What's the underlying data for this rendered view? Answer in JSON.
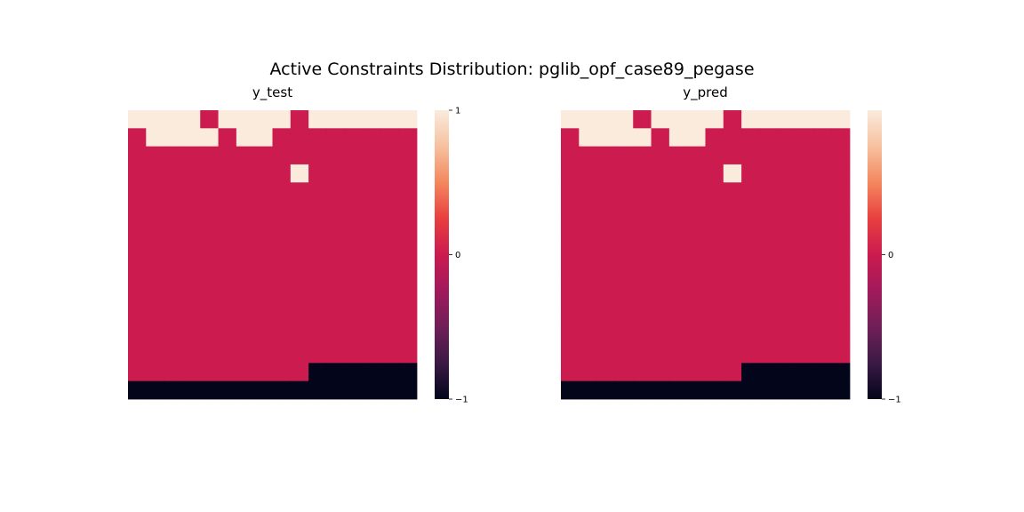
{
  "figure": {
    "title": "Active Constraints Distribution: pglib_opf_case89_pegase"
  },
  "colormap": {
    "name": "rocket",
    "stops": [
      {
        "v": -1.0,
        "color": "#03051a"
      },
      {
        "v": -0.75,
        "color": "#3a1a45"
      },
      {
        "v": -0.5,
        "color": "#701f57"
      },
      {
        "v": -0.25,
        "color": "#a11a5b"
      },
      {
        "v": 0.0,
        "color": "#cb1b4f"
      },
      {
        "v": 0.25,
        "color": "#e83f3f"
      },
      {
        "v": 0.5,
        "color": "#f4875e"
      },
      {
        "v": 0.75,
        "color": "#f6c19f"
      },
      {
        "v": 1.0,
        "color": "#faebdd"
      }
    ]
  },
  "chart_data": [
    {
      "type": "heatmap",
      "title": "y_test",
      "vmin": -1,
      "vmax": 1,
      "colorbar_ticks": [
        {
          "value": 1,
          "label": "1"
        },
        {
          "value": 0,
          "label": "0"
        },
        {
          "value": -1,
          "label": "−1"
        }
      ],
      "grid": [
        [
          1,
          1,
          1,
          1,
          0,
          1,
          1,
          1,
          1,
          0,
          1,
          1,
          1,
          1,
          1,
          1
        ],
        [
          0,
          1,
          1,
          1,
          1,
          0,
          1,
          1,
          0,
          0,
          0,
          0,
          0,
          0,
          0,
          0
        ],
        [
          0,
          0,
          0,
          0,
          0,
          0,
          0,
          0,
          0,
          0,
          0,
          0,
          0,
          0,
          0,
          0
        ],
        [
          0,
          0,
          0,
          0,
          0,
          0,
          0,
          0,
          0,
          1,
          0,
          0,
          0,
          0,
          0,
          0
        ],
        [
          0,
          0,
          0,
          0,
          0,
          0,
          0,
          0,
          0,
          0,
          0,
          0,
          0,
          0,
          0,
          0
        ],
        [
          0,
          0,
          0,
          0,
          0,
          0,
          0,
          0,
          0,
          0,
          0,
          0,
          0,
          0,
          0,
          0
        ],
        [
          0,
          0,
          0,
          0,
          0,
          0,
          0,
          0,
          0,
          0,
          0,
          0,
          0,
          0,
          0,
          0
        ],
        [
          0,
          0,
          0,
          0,
          0,
          0,
          0,
          0,
          0,
          0,
          0,
          0,
          0,
          0,
          0,
          0
        ],
        [
          0,
          0,
          0,
          0,
          0,
          0,
          0,
          0,
          0,
          0,
          0,
          0,
          0,
          0,
          0,
          0
        ],
        [
          0,
          0,
          0,
          0,
          0,
          0,
          0,
          0,
          0,
          0,
          0,
          0,
          0,
          0,
          0,
          0
        ],
        [
          0,
          0,
          0,
          0,
          0,
          0,
          0,
          0,
          0,
          0,
          0,
          0,
          0,
          0,
          0,
          0
        ],
        [
          0,
          0,
          0,
          0,
          0,
          0,
          0,
          0,
          0,
          0,
          0,
          0,
          0,
          0,
          0,
          0
        ],
        [
          0,
          0,
          0,
          0,
          0,
          0,
          0,
          0,
          0,
          0,
          0,
          0,
          0,
          0,
          0,
          0
        ],
        [
          0,
          0,
          0,
          0,
          0,
          0,
          0,
          0,
          0,
          0,
          0,
          0,
          0,
          0,
          0,
          0
        ],
        [
          0,
          0,
          0,
          0,
          0,
          0,
          0,
          0,
          0,
          0,
          -1,
          -1,
          -1,
          -1,
          -1,
          -1
        ],
        [
          -1,
          -1,
          -1,
          -1,
          -1,
          -1,
          -1,
          -1,
          -1,
          -1,
          -1,
          -1,
          -1,
          -1,
          -1,
          -1
        ]
      ]
    },
    {
      "type": "heatmap",
      "title": "y_pred",
      "vmin": -1,
      "vmax": 1,
      "colorbar_ticks": [
        {
          "value": 0,
          "label": "0"
        },
        {
          "value": -1,
          "label": "−1"
        }
      ],
      "grid": [
        [
          1,
          1,
          1,
          1,
          0,
          1,
          1,
          1,
          1,
          0,
          1,
          1,
          1,
          1,
          1,
          1
        ],
        [
          0,
          1,
          1,
          1,
          1,
          0,
          1,
          1,
          0,
          0,
          0,
          0,
          0,
          0,
          0,
          0
        ],
        [
          0,
          0,
          0,
          0,
          0,
          0,
          0,
          0,
          0,
          0,
          0,
          0,
          0,
          0,
          0,
          0
        ],
        [
          0,
          0,
          0,
          0,
          0,
          0,
          0,
          0,
          0,
          1,
          0,
          0,
          0,
          0,
          0,
          0
        ],
        [
          0,
          0,
          0,
          0,
          0,
          0,
          0,
          0,
          0,
          0,
          0,
          0,
          0,
          0,
          0,
          0
        ],
        [
          0,
          0,
          0,
          0,
          0,
          0,
          0,
          0,
          0,
          0,
          0,
          0,
          0,
          0,
          0,
          0
        ],
        [
          0,
          0,
          0,
          0,
          0,
          0,
          0,
          0,
          0,
          0,
          0,
          0,
          0,
          0,
          0,
          0
        ],
        [
          0,
          0,
          0,
          0,
          0,
          0,
          0,
          0,
          0,
          0,
          0,
          0,
          0,
          0,
          0,
          0
        ],
        [
          0,
          0,
          0,
          0,
          0,
          0,
          0,
          0,
          0,
          0,
          0,
          0,
          0,
          0,
          0,
          0
        ],
        [
          0,
          0,
          0,
          0,
          0,
          0,
          0,
          0,
          0,
          0,
          0,
          0,
          0,
          0,
          0,
          0
        ],
        [
          0,
          0,
          0,
          0,
          0,
          0,
          0,
          0,
          0,
          0,
          0,
          0,
          0,
          0,
          0,
          0
        ],
        [
          0,
          0,
          0,
          0,
          0,
          0,
          0,
          0,
          0,
          0,
          0,
          0,
          0,
          0,
          0,
          0
        ],
        [
          0,
          0,
          0,
          0,
          0,
          0,
          0,
          0,
          0,
          0,
          0,
          0,
          0,
          0,
          0,
          0
        ],
        [
          0,
          0,
          0,
          0,
          0,
          0,
          0,
          0,
          0,
          0,
          0,
          0,
          0,
          0,
          0,
          0
        ],
        [
          0,
          0,
          0,
          0,
          0,
          0,
          0,
          0,
          0,
          0,
          -1,
          -1,
          -1,
          -1,
          -1,
          -1
        ],
        [
          -1,
          -1,
          -1,
          -1,
          -1,
          -1,
          -1,
          -1,
          -1,
          -1,
          -1,
          -1,
          -1,
          -1,
          -1,
          -1
        ]
      ]
    }
  ]
}
